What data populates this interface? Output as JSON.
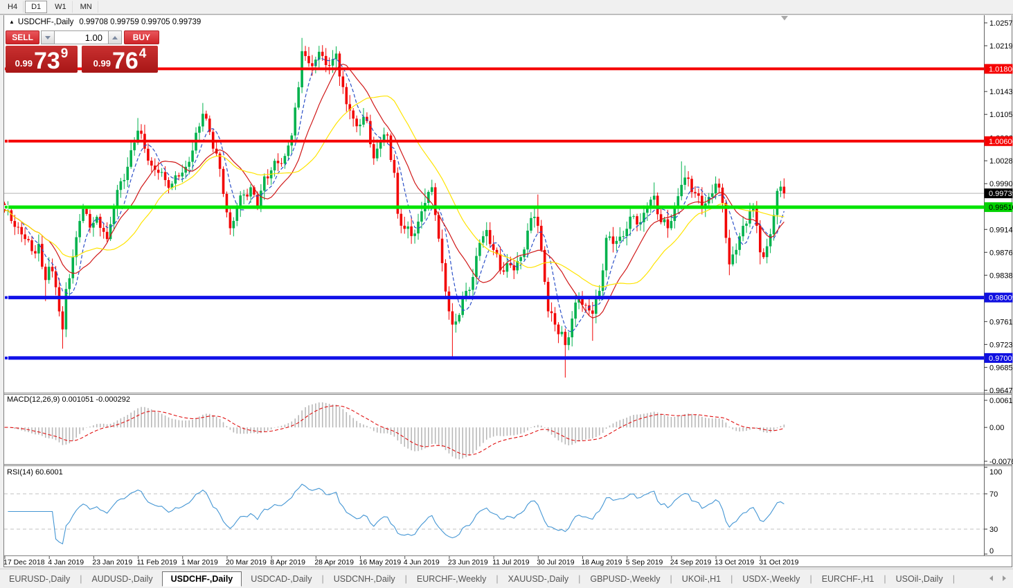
{
  "toolbar": {
    "timeframes": [
      {
        "label": "H4",
        "active": false
      },
      {
        "label": "D1",
        "active": true
      },
      {
        "label": "W1",
        "active": false
      },
      {
        "label": "MN",
        "active": false
      }
    ]
  },
  "chart": {
    "title_symbol": "USDCHF-,Daily",
    "title_quotes": "0.99708 0.99759 0.99705 0.99739",
    "macd_label": "MACD(12,26,9) 0.001051 -0.000292",
    "rsi_label": "RSI(14) 60.6001"
  },
  "trade_panel": {
    "sell_label": "SELL",
    "buy_label": "BUY",
    "volume": "1.00",
    "sell_price": {
      "prefix": "0.99",
      "big": "73",
      "sup": "9"
    },
    "buy_price": {
      "prefix": "0.99",
      "big": "76",
      "sup": "4"
    }
  },
  "price_axis": {
    "ticks": [
      "1.02570",
      "1.02190",
      "1.01430",
      "1.01050",
      "1.00660",
      "1.00280",
      "0.99900",
      "0.99140",
      "0.98760",
      "0.98380",
      "0.97610",
      "0.97230",
      "0.96850",
      "0.96470"
    ],
    "tick_values": [
      1.0257,
      1.0219,
      1.0143,
      1.0105,
      1.0066,
      1.0028,
      0.999,
      0.9914,
      0.9876,
      0.9838,
      0.9761,
      0.9723,
      0.9685,
      0.9647
    ],
    "badges": [
      {
        "label": "1.01806",
        "price": 1.01806,
        "bg": "#f50000",
        "fg": "#ffffff"
      },
      {
        "label": "1.00606",
        "price": 1.00606,
        "bg": "#f50000",
        "fg": "#ffffff"
      },
      {
        "label": "0.99739",
        "price": 0.99739,
        "bg": "#000000",
        "fg": "#ffffff"
      },
      {
        "label": "0.99510",
        "price": 0.9951,
        "bg": "#00d200",
        "fg": "#000000"
      },
      {
        "label": "0.98009",
        "price": 0.98009,
        "bg": "#0f0fe0",
        "fg": "#ffffff"
      },
      {
        "label": "0.97005",
        "price": 0.97005,
        "bg": "#0f0fe0",
        "fg": "#ffffff"
      }
    ]
  },
  "macd_axis": {
    "labels": [
      "0.00613",
      "0.00",
      "-0.007612"
    ],
    "values": [
      0.00613,
      0,
      -0.007612
    ]
  },
  "rsi_axis": {
    "labels": [
      "100",
      "70",
      "30",
      "0"
    ],
    "values": [
      100,
      70,
      30,
      0
    ]
  },
  "dates": [
    "17 Dec 2018",
    "4 Jan 2019",
    "23 Jan 2019",
    "11 Feb 2019",
    "1 Mar 2019",
    "20 Mar 2019",
    "8 Apr 2019",
    "28 Apr 2019",
    "16 May 2019",
    "4 Jun 2019",
    "23 Jun 2019",
    "11 Jul 2019",
    "30 Jul 2019",
    "18 Aug 2019",
    "5 Sep 2019",
    "24 Sep 2019",
    "13 Oct 2019",
    "31 Oct 2019"
  ],
  "tabs": [
    {
      "label": "EURUSD-,Daily",
      "active": false
    },
    {
      "label": "AUDUSD-,Daily",
      "active": false
    },
    {
      "label": "USDCHF-,Daily",
      "active": true
    },
    {
      "label": "USDCAD-,Daily",
      "active": false
    },
    {
      "label": "USDCNH-,Daily",
      "active": false
    },
    {
      "label": "EURCHF-,Weekly",
      "active": false
    },
    {
      "label": "XAUUSD-,Daily",
      "active": false
    },
    {
      "label": "GBPUSD-,Weekly",
      "active": false
    },
    {
      "label": "UKOil-,H1",
      "active": false
    },
    {
      "label": "USDX-,Weekly",
      "active": false
    },
    {
      "label": "EURCHF-,H1",
      "active": false
    },
    {
      "label": "USOil-,Daily",
      "active": false
    }
  ],
  "chart_data": {
    "type": "candlestick",
    "symbol": "USDCHF",
    "timeframe": "Daily",
    "y_range": {
      "top": 1.0257,
      "bottom": 0.9647
    },
    "n_candles": 229,
    "close_anchors": [
      [
        0,
        0.9945
      ],
      [
        2,
        0.9928
      ],
      [
        4,
        0.9918
      ],
      [
        6,
        0.9898
      ],
      [
        8,
        0.9878
      ],
      [
        10,
        0.989
      ],
      [
        11,
        0.9852
      ],
      [
        12,
        0.983
      ],
      [
        13,
        0.9852
      ],
      [
        15,
        0.9818
      ],
      [
        17,
        0.9748
      ],
      [
        18,
        0.9815
      ],
      [
        20,
        0.9868
      ],
      [
        22,
        0.9928
      ],
      [
        23,
        0.9948
      ],
      [
        25,
        0.9917
      ],
      [
        27,
        0.9935
      ],
      [
        29,
        0.991
      ],
      [
        30,
        0.9898
      ],
      [
        32,
        0.995
      ],
      [
        34,
        0.9994
      ],
      [
        36,
        1.0018
      ],
      [
        38,
        1.0058
      ],
      [
        39,
        1.0078
      ],
      [
        41,
        1.0048
      ],
      [
        43,
        1.002
      ],
      [
        45,
        1.0008
      ],
      [
        47,
        0.9996
      ],
      [
        49,
        0.999
      ],
      [
        51,
        1.0002
      ],
      [
        53,
        1.0018
      ],
      [
        55,
        1.0045
      ],
      [
        57,
        1.0085
      ],
      [
        58,
        1.0106
      ],
      [
        60,
        1.0076
      ],
      [
        62,
        1.004
      ],
      [
        64,
        0.9973
      ],
      [
        66,
        0.9916
      ],
      [
        68,
        0.995
      ],
      [
        70,
        0.9972
      ],
      [
        72,
        0.9984
      ],
      [
        74,
        0.995
      ],
      [
        76,
        1.0002
      ],
      [
        78,
        1.0012
      ],
      [
        80,
        1.0024
      ],
      [
        82,
        1.0036
      ],
      [
        84,
        1.007
      ],
      [
        86,
        1.015
      ],
      [
        87,
        1.021
      ],
      [
        89,
        1.019
      ],
      [
        91,
        1.0196
      ],
      [
        93,
        1.0202
      ],
      [
        95,
        1.0186
      ],
      [
        97,
        1.0206
      ],
      [
        98,
        1.0168
      ],
      [
        100,
        1.0122
      ],
      [
        102,
        1.0098
      ],
      [
        104,
        1.0088
      ],
      [
        106,
        1.0094
      ],
      [
        108,
        1.0032
      ],
      [
        110,
        1.0062
      ],
      [
        112,
        1.007
      ],
      [
        114,
        1.0008
      ],
      [
        115,
        0.994
      ],
      [
        117,
        0.9915
      ],
      [
        119,
        0.9903
      ],
      [
        121,
        0.9927
      ],
      [
        123,
        0.9958
      ],
      [
        125,
        0.9984
      ],
      [
        126,
        0.9938
      ],
      [
        128,
        0.9858
      ],
      [
        130,
        0.9778
      ],
      [
        131,
        0.9756
      ],
      [
        133,
        0.9772
      ],
      [
        135,
        0.9812
      ],
      [
        137,
        0.9835
      ],
      [
        139,
        0.9892
      ],
      [
        141,
        0.9913
      ],
      [
        143,
        0.988
      ],
      [
        145,
        0.9846
      ],
      [
        147,
        0.9858
      ],
      [
        149,
        0.9846
      ],
      [
        151,
        0.9868
      ],
      [
        153,
        0.9912
      ],
      [
        155,
        0.9935
      ],
      [
        156,
        0.992
      ],
      [
        157,
        0.988
      ],
      [
        159,
        0.9778
      ],
      [
        161,
        0.9756
      ],
      [
        163,
        0.9744
      ],
      [
        164,
        0.9722
      ],
      [
        166,
        0.9766
      ],
      [
        168,
        0.98
      ],
      [
        170,
        0.9788
      ],
      [
        172,
        0.9774
      ],
      [
        174,
        0.9812
      ],
      [
        176,
        0.99
      ],
      [
        178,
        0.989
      ],
      [
        180,
        0.9902
      ],
      [
        182,
        0.9915
      ],
      [
        184,
        0.9936
      ],
      [
        186,
        0.9926
      ],
      [
        188,
        0.995
      ],
      [
        190,
        0.997
      ],
      [
        192,
        0.9926
      ],
      [
        194,
        0.9916
      ],
      [
        196,
        0.9952
      ],
      [
        198,
        0.9988
      ],
      [
        200,
        0.9998
      ],
      [
        202,
        0.9974
      ],
      [
        204,
        0.995
      ],
      [
        206,
        0.9968
      ],
      [
        208,
        0.999
      ],
      [
        210,
        0.9958
      ],
      [
        211,
        0.99
      ],
      [
        212,
        0.9856
      ],
      [
        214,
        0.988
      ],
      [
        216,
        0.992
      ],
      [
        218,
        0.9944
      ],
      [
        219,
        0.995
      ],
      [
        220,
        0.992
      ],
      [
        221,
        0.9876
      ],
      [
        222,
        0.9868
      ],
      [
        223,
        0.9886
      ],
      [
        224,
        0.9906
      ],
      [
        225,
        0.9938
      ],
      [
        226,
        0.9978
      ],
      [
        227,
        0.9985
      ],
      [
        228,
        0.99739
      ]
    ],
    "wick_overrides": {
      "12": {
        "low": 0.9795
      },
      "17": {
        "low": 0.9716
      },
      "39": {
        "high": 1.0099
      },
      "58": {
        "high": 1.0124
      },
      "87": {
        "high": 1.0232
      },
      "93": {
        "high": 1.022
      },
      "97": {
        "high": 1.0218
      },
      "123": {
        "high": 0.9982
      },
      "131": {
        "low": 0.9701
      },
      "156": {
        "high": 0.9972
      },
      "164": {
        "low": 0.9668
      },
      "172": {
        "low": 0.9729
      },
      "190": {
        "high": 0.9992
      },
      "198": {
        "high": 1.0027
      },
      "199": {
        "high": 1.002
      },
      "208": {
        "high": 1.0002
      },
      "212": {
        "low": 0.9838
      },
      "221": {
        "low": 0.9856
      }
    },
    "colors": {
      "candle_up": "#00b24d",
      "candle_down": "#f20505",
      "ma_fast": "#2b50c8",
      "ma_mid": "#d01818",
      "ma_slow": "#ffe400",
      "macd_bar": "#b8b8b8",
      "macd_signal": "#e01010",
      "rsi_line": "#4496d4",
      "bid_line": "#b4b4b4"
    },
    "hlines": [
      {
        "price": 1.01806,
        "color": "#f50000",
        "width": 4
      },
      {
        "price": 1.00606,
        "color": "#f50000",
        "width": 4
      },
      {
        "price": 0.9951,
        "color": "#00e400",
        "width": 5
      },
      {
        "price": 0.98009,
        "color": "#1111e8",
        "width": 5
      },
      {
        "price": 0.97005,
        "color": "#1111e8",
        "width": 5
      }
    ],
    "bid_line_price": 0.99739,
    "moving_averages": [
      {
        "period": 6,
        "style": "dashed",
        "colorKey": "ma_fast"
      },
      {
        "period": 14,
        "style": "solid",
        "colorKey": "ma_mid"
      },
      {
        "period": 28,
        "style": "solid",
        "colorKey": "ma_slow"
      }
    ],
    "macd": {
      "fast": 12,
      "slow": 26,
      "signal": 9,
      "current": 0.001051,
      "current_signal": -0.000292,
      "scale_top": 0.00613,
      "scale_bottom": -0.007612
    },
    "rsi": {
      "period": 14,
      "current": 60.6001,
      "levels": [
        70,
        30
      ]
    }
  }
}
